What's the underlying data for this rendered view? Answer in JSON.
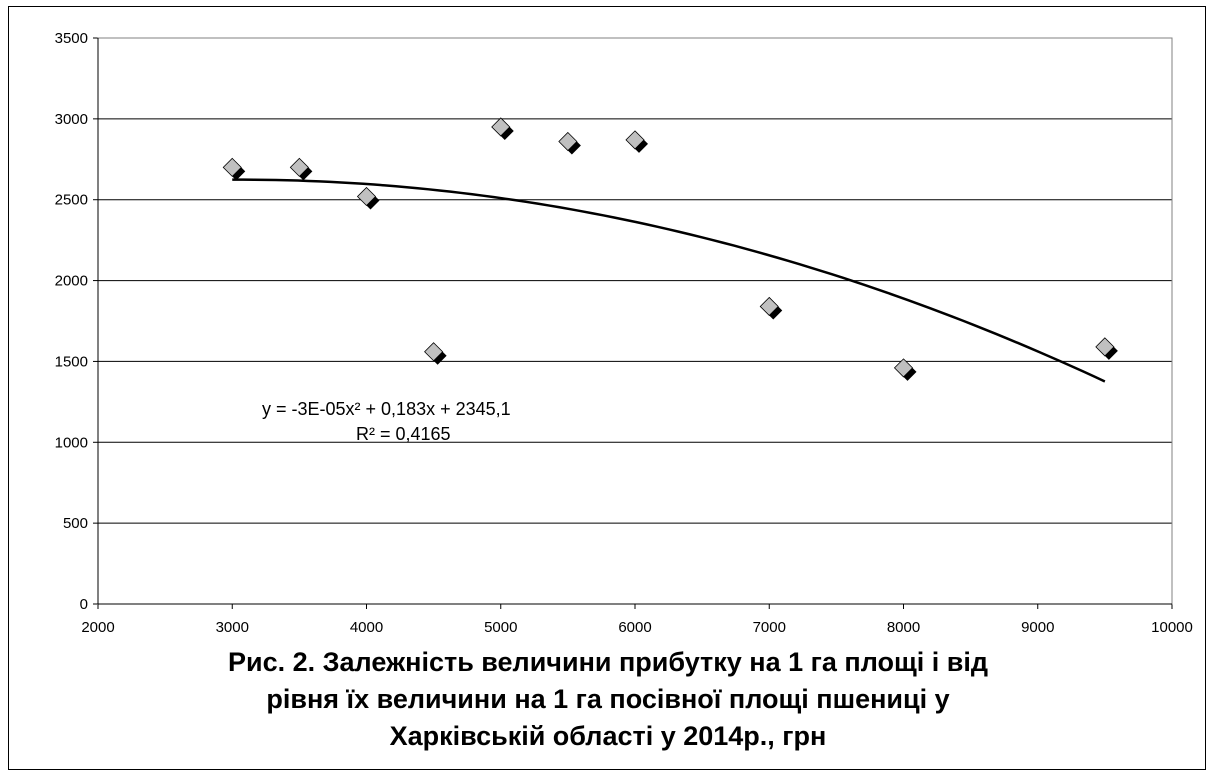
{
  "chart_data": {
    "type": "scatter",
    "title": "",
    "xlabel": "",
    "ylabel": "",
    "xlim": [
      2000,
      10000
    ],
    "ylim": [
      0,
      3500
    ],
    "x_ticks": [
      2000,
      3000,
      4000,
      5000,
      6000,
      7000,
      8000,
      9000,
      10000
    ],
    "y_ticks": [
      0,
      500,
      1000,
      1500,
      2000,
      2500,
      3000,
      3500
    ],
    "grid": "horizontal",
    "points": [
      {
        "x": 3000,
        "y": 2700
      },
      {
        "x": 3500,
        "y": 2700
      },
      {
        "x": 4000,
        "y": 2520
      },
      {
        "x": 4500,
        "y": 1560
      },
      {
        "x": 5000,
        "y": 2950
      },
      {
        "x": 5500,
        "y": 2860
      },
      {
        "x": 6000,
        "y": 2870
      },
      {
        "x": 7000,
        "y": 1840
      },
      {
        "x": 8000,
        "y": 1460
      },
      {
        "x": 9500,
        "y": 1590
      }
    ],
    "trendline": {
      "type": "polynomial",
      "coefficients": {
        "a": -3e-05,
        "b": 0.183,
        "c": 2345.1
      },
      "x_range": [
        3000,
        9500
      ],
      "equation_text": "y = -3E-05x² + 0,183x + 2345,1",
      "r2_text": "R² = 0,4165"
    }
  },
  "caption": {
    "line1": "Рис. 2.  Залежність величини прибутку на 1 га площі і від",
    "line2": "рівня їх величини на 1 га посівної  площі пшениці у",
    "line3": "Харківській області  у  2014р., грн"
  },
  "colors": {
    "marker_fill": "#c0c0c0",
    "marker_shadow": "#000000",
    "trendline": "#000000",
    "gridline": "#000000"
  }
}
